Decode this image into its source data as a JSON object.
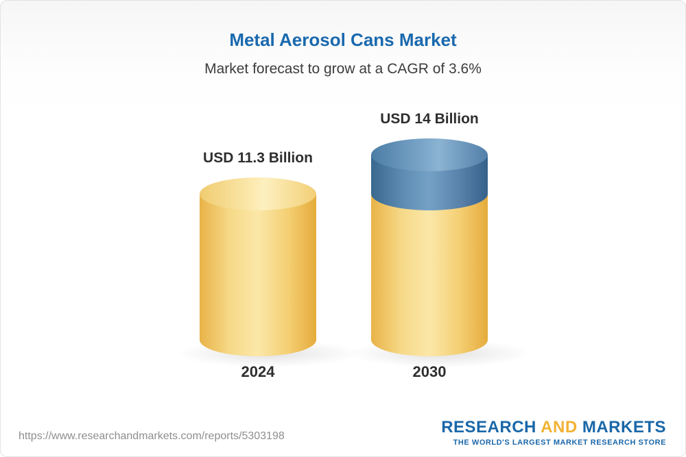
{
  "header": {
    "title": "Metal Aerosol Cans Market",
    "subtitle": "Market forecast to grow at a CAGR of 3.6%"
  },
  "chart_data": {
    "type": "bar",
    "categories": [
      "2024",
      "2030"
    ],
    "values": [
      11.3,
      14
    ],
    "value_labels": [
      "USD 11.3 Billion",
      "USD 14 Billion"
    ],
    "title": "Metal Aerosol Cans Market",
    "subtitle": "Market forecast to grow at a CAGR of 3.6%",
    "unit": "USD Billion",
    "cagr": "3.6%",
    "bar_style": "cylinder",
    "bar_color": "#f5d67e",
    "growth_segment_color": "#4a7ba6",
    "growth_segment_baseline": 11.3,
    "legend_position": "none",
    "grid": false
  },
  "bars": [
    {
      "label": "USD 11.3 Billion",
      "year": "2024"
    },
    {
      "label": "USD 14 Billion",
      "year": "2030"
    }
  ],
  "footer": {
    "url": "https://www.researchandmarkets.com/reports/5303198",
    "logo": {
      "research": "RESEARCH",
      "and": " AND ",
      "markets": "MARKETS",
      "tagline": "THE WORLD'S LARGEST MARKET RESEARCH STORE"
    }
  },
  "colors": {
    "title_blue": "#1a69ae",
    "accent_yellow": "#f2b233",
    "accent_blue": "#1a67a8"
  }
}
